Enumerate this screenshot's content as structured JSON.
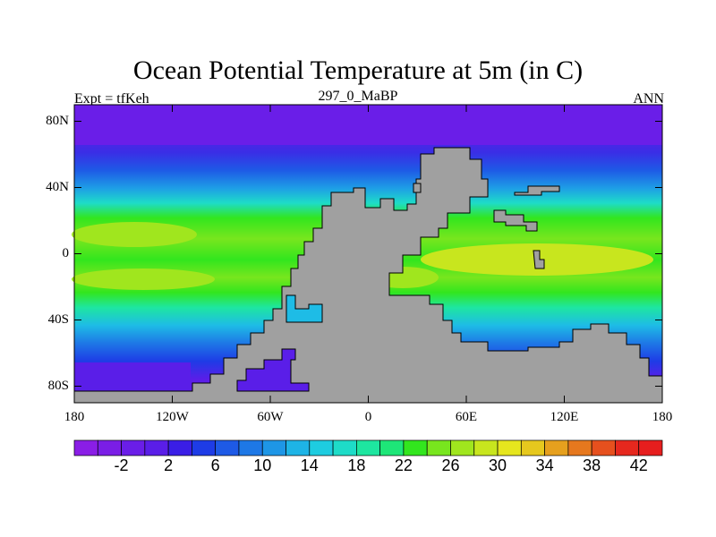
{
  "title": "Ocean Potential Temperature at 5m (in C)",
  "left_label": "Expt = tfKeh",
  "center_label": "297_0_MaBP",
  "right_label": "ANN",
  "y_ticks": [
    "80N",
    "40N",
    "0",
    "40S",
    "80S"
  ],
  "x_ticks": [
    "180",
    "120W",
    "60W",
    "0",
    "60E",
    "120E",
    "180"
  ],
  "colorbar": {
    "ticks": [
      "-2",
      "2",
      "6",
      "10",
      "14",
      "18",
      "22",
      "26",
      "30",
      "34",
      "38",
      "42"
    ],
    "colors": [
      "#8a1ee6",
      "#7a1ee6",
      "#6a1ee8",
      "#5a1ee8",
      "#3a1ee6",
      "#1e3ce6",
      "#1e5ae6",
      "#1e78e6",
      "#1e96e6",
      "#1eb4e6",
      "#1ecce0",
      "#1edcc8",
      "#1ee6a0",
      "#1ee678",
      "#32e61e",
      "#78e61e",
      "#a0e61e",
      "#c8e61e",
      "#e6e61e",
      "#e6c81e",
      "#e6a01e",
      "#e6781e",
      "#e6501e",
      "#e6281e",
      "#e61e1e"
    ]
  },
  "land_color": "#a0a0a0"
}
